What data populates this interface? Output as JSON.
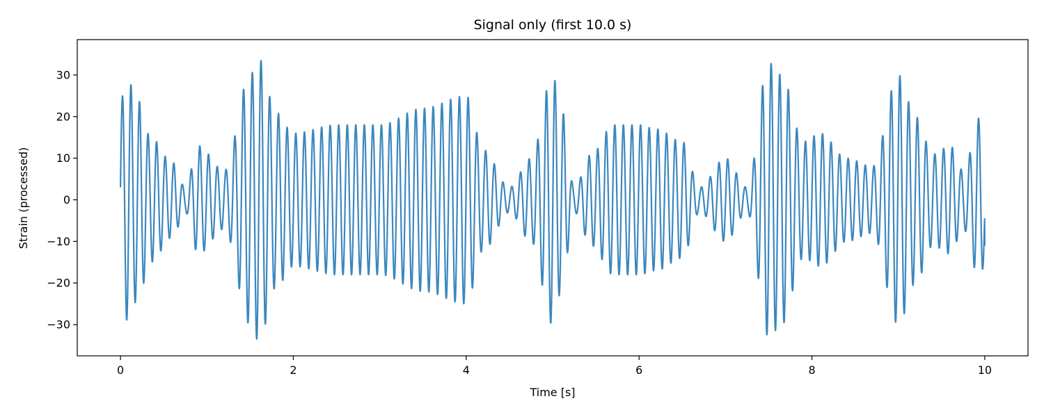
{
  "chart_data": {
    "type": "line",
    "title": "Signal only (first 10.0 s)",
    "xlabel": "Time [s]",
    "ylabel": "Strain (processed)",
    "xlim": [
      -0.5,
      10.5
    ],
    "ylim": [
      -37.5,
      38.5
    ],
    "xticks": [
      0,
      2,
      4,
      6,
      8,
      10
    ],
    "xtick_labels": [
      "0",
      "2",
      "4",
      "6",
      "8",
      "10"
    ],
    "yticks": [
      -30,
      -20,
      -10,
      0,
      10,
      20,
      30
    ],
    "ytick_labels": [
      "−30",
      "−20",
      "−10",
      "0",
      "10",
      "20",
      "30"
    ],
    "grid": false,
    "series": [
      {
        "color": "#3b87bf",
        "description": "oscillating signal ~10 Hz with beating envelope",
        "carrier_frequency_hz": 10.0,
        "envelope": {
          "t": [
            0,
            0.08,
            0.2,
            0.35,
            0.6,
            0.75,
            0.9,
            1.2,
            1.5,
            1.6,
            1.8,
            2.0,
            2.5,
            3.0,
            3.5,
            4.0,
            4.2,
            4.5,
            4.75,
            5.0,
            5.1,
            5.25,
            5.45,
            5.7,
            6.0,
            6.2,
            6.5,
            6.7,
            7.0,
            7.25,
            7.5,
            7.65,
            7.9,
            8.1,
            8.4,
            8.7,
            9.0,
            9.2,
            9.4,
            9.6,
            9.75,
            9.95,
            10.0
          ],
          "amp": [
            24,
            29,
            24,
            15,
            9,
            3,
            13,
            7,
            30,
            34,
            21,
            16,
            18,
            18,
            22,
            25,
            12,
            3,
            10,
            30,
            22,
            3,
            11,
            18,
            18,
            17,
            14,
            3,
            10,
            3,
            33,
            30,
            14,
            16,
            10,
            8,
            30,
            20,
            11,
            13,
            7,
            20,
            14
          ]
        },
        "start_value": 3,
        "end_value": -11
      }
    ]
  }
}
